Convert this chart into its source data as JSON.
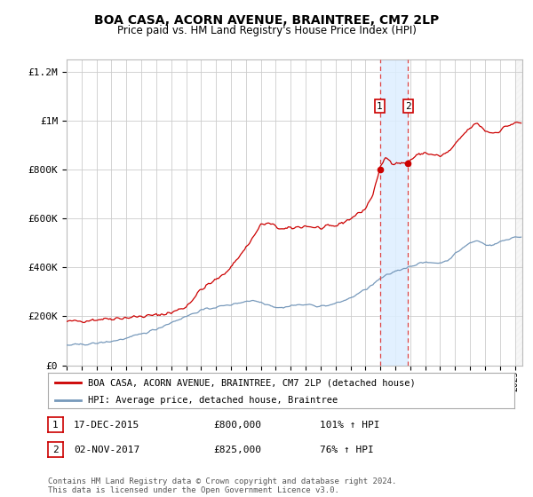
{
  "title": "BOA CASA, ACORN AVENUE, BRAINTREE, CM7 2LP",
  "subtitle": "Price paid vs. HM Land Registry's House Price Index (HPI)",
  "legend_line1": "BOA CASA, ACORN AVENUE, BRAINTREE, CM7 2LP (detached house)",
  "legend_line2": "HPI: Average price, detached house, Braintree",
  "footnote": "Contains HM Land Registry data © Crown copyright and database right 2024.\nThis data is licensed under the Open Government Licence v3.0.",
  "sale1_date": "17-DEC-2015",
  "sale1_price": 800000,
  "sale1_label": "101% ↑ HPI",
  "sale2_date": "02-NOV-2017",
  "sale2_price": 825000,
  "sale2_label": "76% ↑ HPI",
  "ylim": [
    0,
    1250000
  ],
  "xlim_start": 1995.0,
  "xlim_end": 2025.5,
  "sale1_x": 2015.96,
  "sale2_x": 2017.84,
  "red_line_color": "#cc0000",
  "blue_line_color": "#7799bb",
  "shade_color": "#ddeeff",
  "dashed_line_color": "#dd4444",
  "background_color": "#ffffff",
  "grid_color": "#cccccc",
  "title_fontsize": 10,
  "subtitle_fontsize": 9,
  "tick_fontsize": 7,
  "ytick_fontsize": 8
}
